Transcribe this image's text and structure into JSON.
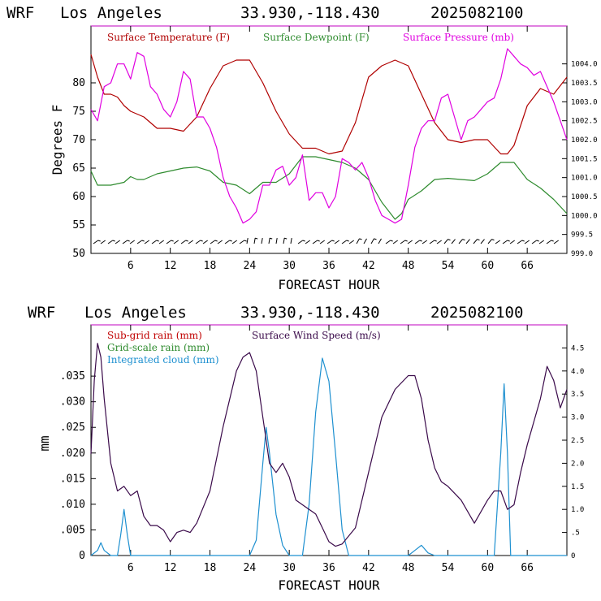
{
  "colors": {
    "temperature": "#b00000",
    "dewpoint": "#2e8b2e",
    "pressure": "#e000e0",
    "subgrid": "#c00000",
    "gridscale": "#2e8b2e",
    "cloud": "#1e90d0",
    "windspeed": "#3a0a4a",
    "frame_top": "#c000c0"
  },
  "chart_data": [
    {
      "type": "line",
      "header": {
        "model": "WRF",
        "location": "Los Angeles",
        "coords": "33.930,-118.430",
        "run": "2025082100"
      },
      "xlabel": "FORECAST HOUR",
      "ylabel": "Degrees F",
      "xlim": [
        0,
        72
      ],
      "ylim": [
        50,
        90
      ],
      "y2lim": [
        999.0,
        1005.0
      ],
      "x_ticks": [
        6,
        12,
        18,
        24,
        30,
        36,
        42,
        48,
        54,
        60,
        66
      ],
      "y_ticks": [
        50,
        55,
        60,
        65,
        70,
        75,
        80
      ],
      "y2_ticks": [
        "999.0",
        "999.5",
        "1000.0",
        "1000.5",
        "1001.0",
        "1001.5",
        "1002.0",
        "1002.5",
        "1003.0",
        "1003.5",
        "1004.0"
      ],
      "legend": [
        "Surface Temperature (F)",
        "Surface Dewpoint (F)",
        "Surface Pressure (mb)"
      ],
      "wind_barbs": "row of wind barbs along bottom",
      "series": [
        {
          "name": "Surface Temperature (F)",
          "axis": "left",
          "x": [
            0,
            1,
            2,
            3,
            4,
            5,
            6,
            8,
            10,
            12,
            14,
            16,
            18,
            20,
            22,
            24,
            26,
            28,
            30,
            32,
            34,
            36,
            38,
            40,
            42,
            44,
            46,
            48,
            50,
            52,
            54,
            56,
            58,
            60,
            62,
            63,
            64,
            66,
            68,
            70,
            72
          ],
          "y": [
            85,
            81,
            78,
            78,
            77.5,
            76,
            75,
            74,
            72,
            72,
            71.5,
            74,
            79,
            83,
            84,
            84,
            80,
            75,
            71,
            68.5,
            68.5,
            67.5,
            68,
            73,
            81,
            83,
            84,
            83,
            78,
            73,
            70,
            69.5,
            70,
            70,
            67.5,
            67.5,
            69,
            76,
            79,
            78,
            81
          ]
        },
        {
          "name": "Surface Dewpoint (F)",
          "axis": "left",
          "x": [
            0,
            1,
            3,
            5,
            6,
            7,
            8,
            10,
            12,
            14,
            16,
            18,
            20,
            22,
            24,
            26,
            28,
            30,
            32,
            34,
            36,
            38,
            40,
            42,
            44,
            46,
            47,
            48,
            50,
            52,
            54,
            56,
            58,
            60,
            62,
            64,
            66,
            68,
            70,
            72
          ],
          "y": [
            64.5,
            62,
            62,
            62.5,
            63.5,
            63,
            63,
            64,
            64.5,
            65,
            65.2,
            64.5,
            62.5,
            62,
            60.5,
            62.5,
            62.5,
            64,
            67,
            67,
            66.5,
            66,
            65,
            63,
            59,
            56,
            57,
            59.5,
            61,
            63,
            63.2,
            63,
            62.8,
            64,
            66,
            66,
            63,
            61.5,
            59.5,
            57
          ]
        },
        {
          "name": "Surface Pressure (mb)",
          "axis": "right",
          "x": [
            0,
            1,
            2,
            3,
            4,
            5,
            6,
            7,
            8,
            9,
            10,
            11,
            12,
            13,
            14,
            15,
            16,
            17,
            18,
            19,
            20,
            21,
            22,
            23,
            24,
            25,
            26,
            27,
            28,
            29,
            30,
            31,
            32,
            33,
            34,
            35,
            36,
            37,
            38,
            39,
            40,
            41,
            42,
            43,
            44,
            45,
            46,
            47,
            48,
            49,
            50,
            51,
            52,
            53,
            54,
            55,
            56,
            57,
            58,
            59,
            60,
            61,
            62,
            63,
            64,
            65,
            66,
            67,
            68,
            69,
            70,
            71,
            72
          ],
          "y": [
            1002.8,
            1002.5,
            1003.4,
            1003.5,
            1004.0,
            1004.0,
            1003.6,
            1004.3,
            1004.2,
            1003.4,
            1003.2,
            1002.8,
            1002.6,
            1003.0,
            1003.8,
            1003.6,
            1002.6,
            1002.6,
            1002.3,
            1001.8,
            1001.0,
            1000.5,
            1000.2,
            999.8,
            999.9,
            1000.1,
            1000.8,
            1000.8,
            1001.2,
            1001.3,
            1000.8,
            1001.0,
            1001.6,
            1000.4,
            1000.6,
            1000.6,
            1000.2,
            1000.5,
            1001.5,
            1001.4,
            1001.2,
            1001.4,
            1001.0,
            1000.4,
            1000.0,
            999.9,
            999.8,
            999.9,
            1000.8,
            1001.8,
            1002.3,
            1002.5,
            1002.5,
            1003.1,
            1003.2,
            1002.6,
            1002.0,
            1002.5,
            1002.6,
            1002.8,
            1003.0,
            1003.1,
            1003.6,
            1004.4,
            1004.2,
            1004.0,
            1003.9,
            1003.7,
            1003.8,
            1003.4,
            1003.0,
            1002.5,
            1002.0
          ]
        }
      ]
    },
    {
      "type": "line",
      "header": {
        "model": "WRF",
        "location": "Los Angeles",
        "coords": "33.930,-118.430",
        "run": "2025082100"
      },
      "xlabel": "FORECAST HOUR",
      "ylabel": "mm",
      "xlim": [
        0,
        72
      ],
      "ylim": [
        0,
        0.045
      ],
      "y2lim": [
        0,
        5.0
      ],
      "x_ticks": [
        6,
        12,
        18,
        24,
        30,
        36,
        42,
        48,
        54,
        60,
        66
      ],
      "y_ticks": [
        "0",
        ".005",
        ".010",
        ".015",
        ".020",
        ".025",
        ".030",
        ".035"
      ],
      "y2_ticks": [
        "0",
        ".5",
        "1.0",
        "1.5",
        "2.0",
        "2.5",
        "3.0",
        "3.5",
        "4.0",
        "4.5"
      ],
      "legend": [
        "Sub-grid rain (mm)",
        "Grid-scale rain (mm)",
        "Integrated cloud (mm)",
        "Surface Wind Speed (m/s)"
      ],
      "series": [
        {
          "name": "Integrated cloud (mm)",
          "axis": "left",
          "x": [
            0,
            1,
            1.5,
            2,
            3,
            4,
            4.5,
            5,
            5.5,
            6,
            6.5,
            7,
            24,
            25,
            26,
            26.5,
            27,
            28,
            29,
            30,
            31,
            32,
            33,
            34,
            35,
            36,
            37,
            38,
            39,
            40,
            48,
            49,
            50,
            51,
            52,
            61,
            62,
            62.5,
            63,
            63.5,
            64,
            72
          ],
          "y": [
            0,
            0.001,
            0.0025,
            0.001,
            0,
            0,
            0.004,
            0.009,
            0.004,
            0,
            0,
            0,
            0,
            0.003,
            0.018,
            0.025,
            0.02,
            0.008,
            0.002,
            0,
            0,
            0,
            0.01,
            0.028,
            0.0385,
            0.034,
            0.02,
            0.005,
            0,
            0,
            0,
            0.001,
            0.002,
            0.0005,
            0,
            0,
            0.02,
            0.0335,
            0.02,
            0,
            0,
            0
          ]
        },
        {
          "name": "Surface Wind Speed (m/s)",
          "axis": "right",
          "x": [
            0,
            0.5,
            1,
            1.5,
            2,
            3,
            4,
            5,
            6,
            7,
            8,
            9,
            10,
            11,
            12,
            13,
            14,
            15,
            16,
            18,
            20,
            22,
            23,
            24,
            25,
            26,
            27,
            28,
            29,
            30,
            31,
            32,
            33,
            34,
            35,
            36,
            37,
            38,
            40,
            42,
            44,
            46,
            48,
            49,
            50,
            51,
            52,
            53,
            54,
            56,
            58,
            60,
            61,
            62,
            63,
            64,
            65,
            66,
            68,
            69,
            70,
            71,
            72
          ],
          "y": [
            2.2,
            3.8,
            4.6,
            4.3,
            3.4,
            2.0,
            1.4,
            1.5,
            1.3,
            1.4,
            0.85,
            0.65,
            0.65,
            0.55,
            0.3,
            0.5,
            0.55,
            0.5,
            0.7,
            1.4,
            2.8,
            4.0,
            4.3,
            4.4,
            4.0,
            3.0,
            2.0,
            1.8,
            2.0,
            1.7,
            1.2,
            1.1,
            1.0,
            0.9,
            0.6,
            0.3,
            0.2,
            0.25,
            0.6,
            1.8,
            3.0,
            3.6,
            3.9,
            3.9,
            3.4,
            2.5,
            1.9,
            1.6,
            1.5,
            1.2,
            0.7,
            1.2,
            1.4,
            1.4,
            1.0,
            1.1,
            1.8,
            2.4,
            3.4,
            4.1,
            3.8,
            3.2,
            3.6
          ]
        }
      ]
    }
  ]
}
